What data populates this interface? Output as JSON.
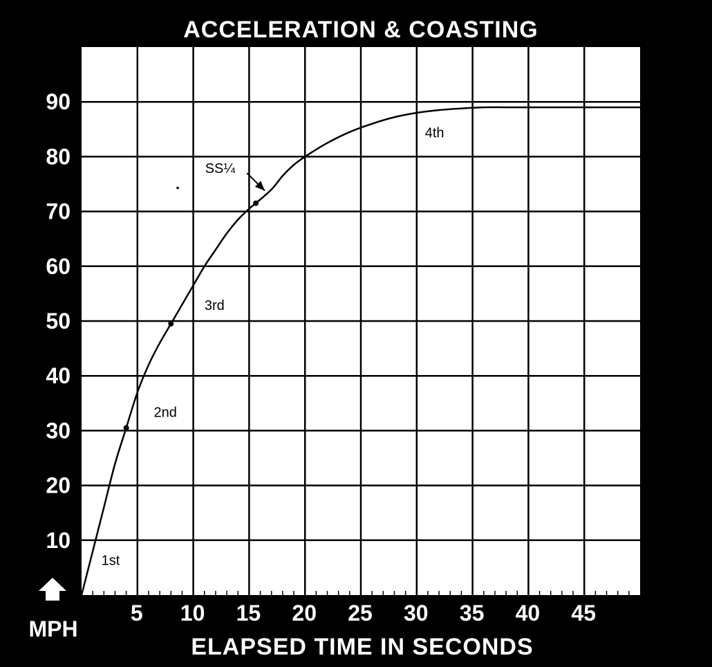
{
  "chart_data": {
    "type": "line",
    "title": "ACCELERATION & COASTING",
    "xlabel": "ELAPSED TIME IN SECONDS",
    "ylabel": "MPH",
    "xlim": [
      0,
      50
    ],
    "ylim": [
      0,
      100
    ],
    "x_ticks": [
      5,
      10,
      15,
      20,
      25,
      30,
      35,
      40,
      45
    ],
    "y_ticks": [
      10,
      20,
      30,
      40,
      50,
      60,
      70,
      80,
      90
    ],
    "grid": true,
    "series": [
      {
        "x": [
          0,
          1,
          2,
          3,
          4.0,
          5,
          6,
          7,
          8.0,
          9,
          10,
          11,
          12,
          13,
          14,
          15,
          15.6,
          17,
          18,
          19,
          20,
          22,
          24,
          26,
          28,
          30,
          32,
          34,
          36,
          38,
          40,
          42,
          44,
          46,
          48,
          50
        ],
        "y": [
          0,
          8,
          16,
          24,
          30.5,
          37,
          42,
          46,
          49.5,
          53,
          56.5,
          60,
          63,
          66,
          68.5,
          70.5,
          71.5,
          74,
          76.5,
          78.5,
          80,
          82.5,
          84.5,
          86,
          87.2,
          88,
          88.5,
          88.8,
          89,
          89,
          89,
          89,
          89,
          89,
          89,
          89
        ]
      }
    ],
    "marked_points": [
      {
        "x": 4.0,
        "y": 30.5
      },
      {
        "x": 8.0,
        "y": 49.5
      },
      {
        "x": 15.6,
        "y": 71.5
      }
    ],
    "annotations": [
      {
        "text": "1st",
        "x": 2.6,
        "y": 5.5
      },
      {
        "text": "2nd",
        "x": 7.5,
        "y": 32.5
      },
      {
        "text": "3rd",
        "x": 11.9,
        "y": 52
      },
      {
        "text": "4th",
        "x": 31.6,
        "y": 83.5
      },
      {
        "text": "SS¼",
        "x": 12.4,
        "y": 77
      }
    ],
    "callout": {
      "from": [
        14.8,
        77
      ],
      "to": [
        16.4,
        73.8
      ]
    },
    "stray_point": {
      "x": 8.6,
      "y": 74.3
    },
    "colors": {
      "background": "#000000",
      "plot_area": "#ffffff",
      "ink": "#000000",
      "text": "#ffffff"
    }
  }
}
